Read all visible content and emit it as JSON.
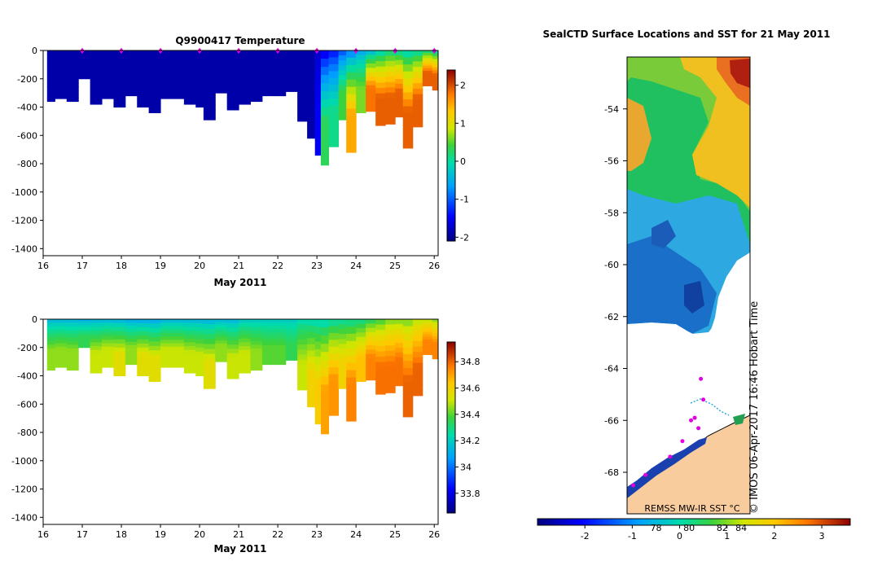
{
  "chart_data": [
    {
      "id": "temperature",
      "type": "heatmap",
      "title": "Q9900417  Temperature",
      "xlabel": "May 2011",
      "ylabel": "",
      "xlim": [
        16,
        26.1
      ],
      "ylim": [
        -1450,
        0
      ],
      "xticks": [
        16,
        17,
        18,
        19,
        20,
        21,
        22,
        23,
        24,
        25,
        26
      ],
      "yticks": [
        0,
        -200,
        -400,
        -600,
        -800,
        -1000,
        -1200,
        -1400
      ],
      "yticklabels": [
        "0",
        "-200",
        "-400",
        "-600",
        "-800",
        "-1000",
        "-1200",
        "-1400"
      ],
      "colorbar": {
        "min": -2.1,
        "max": 2.4,
        "ticks": [
          2,
          1,
          0,
          -1,
          -2
        ],
        "ticklabels": [
          "2",
          "1",
          "0",
          "-1",
          "-2"
        ]
      },
      "surface_markers": [
        17,
        18,
        19,
        20,
        21,
        22,
        23,
        24,
        25,
        26
      ],
      "profiles": [
        {
          "x": 16.1,
          "depth": 360,
          "surface": -1.9,
          "deep": -1.9
        },
        {
          "x": 16.3,
          "depth": 340,
          "surface": -1.9,
          "deep": -1.9
        },
        {
          "x": 16.6,
          "depth": 360,
          "surface": -1.9,
          "deep": -1.9
        },
        {
          "x": 16.9,
          "depth": 200,
          "surface": -1.9,
          "deep": -1.9
        },
        {
          "x": 17.2,
          "depth": 380,
          "surface": -1.9,
          "deep": -1.9
        },
        {
          "x": 17.5,
          "depth": 340,
          "surface": -1.9,
          "deep": -1.9
        },
        {
          "x": 17.8,
          "depth": 400,
          "surface": -1.9,
          "deep": -1.9
        },
        {
          "x": 18.1,
          "depth": 320,
          "surface": -1.9,
          "deep": -1.9
        },
        {
          "x": 18.4,
          "depth": 400,
          "surface": -1.9,
          "deep": -1.9
        },
        {
          "x": 18.7,
          "depth": 440,
          "surface": -1.9,
          "deep": -1.9
        },
        {
          "x": 19.0,
          "depth": 340,
          "surface": -1.9,
          "deep": -1.9
        },
        {
          "x": 19.3,
          "depth": 340,
          "surface": -1.9,
          "deep": -1.9
        },
        {
          "x": 19.6,
          "depth": 380,
          "surface": -1.9,
          "deep": -1.9
        },
        {
          "x": 19.9,
          "depth": 400,
          "surface": -1.9,
          "deep": -1.9
        },
        {
          "x": 20.1,
          "depth": 490,
          "surface": -1.9,
          "deep": -1.9
        },
        {
          "x": 20.4,
          "depth": 300,
          "surface": -1.9,
          "deep": -1.9
        },
        {
          "x": 20.7,
          "depth": 420,
          "surface": -1.9,
          "deep": -1.9
        },
        {
          "x": 21.0,
          "depth": 380,
          "surface": -1.9,
          "deep": -1.9
        },
        {
          "x": 21.3,
          "depth": 360,
          "surface": -1.9,
          "deep": -1.9
        },
        {
          "x": 21.6,
          "depth": 320,
          "surface": -1.9,
          "deep": -1.9
        },
        {
          "x": 21.9,
          "depth": 320,
          "surface": -1.9,
          "deep": -1.9
        },
        {
          "x": 22.2,
          "depth": 290,
          "surface": -1.9,
          "deep": -1.9
        },
        {
          "x": 22.5,
          "depth": 500,
          "surface": -1.9,
          "deep": -1.9
        },
        {
          "x": 22.75,
          "depth": 620,
          "surface": -1.9,
          "deep": -1.9
        },
        {
          "x": 22.95,
          "depth": 740,
          "surface": -1.7,
          "deep": -1.5
        },
        {
          "x": 23.1,
          "depth": 810,
          "surface": -1.5,
          "deep": 0.3
        },
        {
          "x": 23.3,
          "depth": 680,
          "surface": -1.3,
          "deep": 0.1
        },
        {
          "x": 23.55,
          "depth": 490,
          "surface": -1.0,
          "deep": 0.4
        },
        {
          "x": 23.75,
          "depth": 720,
          "surface": -0.7,
          "deep": 1.5
        },
        {
          "x": 24.0,
          "depth": 440,
          "surface": -0.5,
          "deep": 0.6
        },
        {
          "x": 24.25,
          "depth": 430,
          "surface": -0.3,
          "deep": 1.8
        },
        {
          "x": 24.5,
          "depth": 530,
          "surface": 0.0,
          "deep": 1.9
        },
        {
          "x": 24.75,
          "depth": 520,
          "surface": 0.2,
          "deep": 1.9
        },
        {
          "x": 25.0,
          "depth": 470,
          "surface": 0.1,
          "deep": 1.9
        },
        {
          "x": 25.2,
          "depth": 690,
          "surface": 0.0,
          "deep": 1.9
        },
        {
          "x": 25.45,
          "depth": 540,
          "surface": 0.1,
          "deep": 1.9
        },
        {
          "x": 25.7,
          "depth": 250,
          "surface": 0.2,
          "deep": 1.9
        },
        {
          "x": 25.95,
          "depth": 280,
          "surface": 0.0,
          "deep": 1.9
        }
      ]
    },
    {
      "id": "salinity",
      "type": "heatmap",
      "title": "",
      "xlabel": "May 2011",
      "ylabel": "",
      "xlim": [
        16,
        26.1
      ],
      "ylim": [
        -1450,
        0
      ],
      "xticks": [
        16,
        17,
        18,
        19,
        20,
        21,
        22,
        23,
        24,
        25,
        26
      ],
      "yticks": [
        0,
        -200,
        -400,
        -600,
        -800,
        -1000,
        -1200,
        -1400
      ],
      "yticklabels": [
        "0",
        "-200",
        "-400",
        "-600",
        "-800",
        "-1000",
        "-1200",
        "-1400"
      ],
      "colorbar": {
        "min": 33.65,
        "max": 34.95,
        "ticks": [
          34.8,
          34.6,
          34.4,
          34.2,
          34,
          33.8
        ],
        "ticklabels": [
          "34.8",
          "34.6",
          "34.4",
          "34.2",
          "34",
          "33.8"
        ]
      },
      "profiles": [
        {
          "x": 16.1,
          "depth": 360,
          "surface": 34.15,
          "deep": 34.45
        },
        {
          "x": 16.3,
          "depth": 340,
          "surface": 34.15,
          "deep": 34.45
        },
        {
          "x": 16.6,
          "depth": 360,
          "surface": 34.15,
          "deep": 34.45
        },
        {
          "x": 16.9,
          "depth": 200,
          "surface": 34.12,
          "deep": 34.35
        },
        {
          "x": 17.2,
          "depth": 380,
          "surface": 34.15,
          "deep": 34.5
        },
        {
          "x": 17.5,
          "depth": 340,
          "surface": 34.15,
          "deep": 34.5
        },
        {
          "x": 17.8,
          "depth": 400,
          "surface": 34.15,
          "deep": 34.55
        },
        {
          "x": 18.1,
          "depth": 320,
          "surface": 34.12,
          "deep": 34.45
        },
        {
          "x": 18.4,
          "depth": 400,
          "surface": 34.12,
          "deep": 34.55
        },
        {
          "x": 18.7,
          "depth": 440,
          "surface": 34.12,
          "deep": 34.55
        },
        {
          "x": 19.0,
          "depth": 340,
          "surface": 34.15,
          "deep": 34.5
        },
        {
          "x": 19.3,
          "depth": 340,
          "surface": 34.15,
          "deep": 34.5
        },
        {
          "x": 19.6,
          "depth": 380,
          "surface": 34.15,
          "deep": 34.5
        },
        {
          "x": 19.9,
          "depth": 400,
          "surface": 34.15,
          "deep": 34.5
        },
        {
          "x": 20.1,
          "depth": 490,
          "surface": 34.15,
          "deep": 34.55
        },
        {
          "x": 20.4,
          "depth": 300,
          "surface": 34.15,
          "deep": 34.45
        },
        {
          "x": 20.7,
          "depth": 420,
          "surface": 34.15,
          "deep": 34.5
        },
        {
          "x": 21.0,
          "depth": 380,
          "surface": 34.2,
          "deep": 34.5
        },
        {
          "x": 21.3,
          "depth": 360,
          "surface": 34.2,
          "deep": 34.45
        },
        {
          "x": 21.6,
          "depth": 320,
          "surface": 34.2,
          "deep": 34.4
        },
        {
          "x": 21.9,
          "depth": 320,
          "surface": 34.2,
          "deep": 34.4
        },
        {
          "x": 22.2,
          "depth": 290,
          "surface": 34.2,
          "deep": 34.35
        },
        {
          "x": 22.5,
          "depth": 500,
          "surface": 34.25,
          "deep": 34.5
        },
        {
          "x": 22.75,
          "depth": 620,
          "surface": 34.25,
          "deep": 34.6
        },
        {
          "x": 22.95,
          "depth": 740,
          "surface": 34.25,
          "deep": 34.62
        },
        {
          "x": 23.1,
          "depth": 810,
          "surface": 34.25,
          "deep": 34.7
        },
        {
          "x": 23.3,
          "depth": 680,
          "surface": 34.28,
          "deep": 34.72
        },
        {
          "x": 23.55,
          "depth": 490,
          "surface": 34.28,
          "deep": 34.6
        },
        {
          "x": 23.75,
          "depth": 720,
          "surface": 34.3,
          "deep": 34.75
        },
        {
          "x": 24.0,
          "depth": 440,
          "surface": 34.3,
          "deep": 34.65
        },
        {
          "x": 24.25,
          "depth": 430,
          "surface": 34.35,
          "deep": 34.75
        },
        {
          "x": 24.5,
          "depth": 530,
          "surface": 34.4,
          "deep": 34.78
        },
        {
          "x": 24.75,
          "depth": 520,
          "surface": 34.45,
          "deep": 34.78
        },
        {
          "x": 25.0,
          "depth": 470,
          "surface": 34.45,
          "deep": 34.78
        },
        {
          "x": 25.2,
          "depth": 690,
          "surface": 34.45,
          "deep": 34.8
        },
        {
          "x": 25.45,
          "depth": 540,
          "surface": 34.5,
          "deep": 34.8
        },
        {
          "x": 25.7,
          "depth": 250,
          "surface": 34.5,
          "deep": 34.75
        },
        {
          "x": 25.95,
          "depth": 280,
          "surface": 34.45,
          "deep": 34.75
        }
      ]
    },
    {
      "id": "sst-map",
      "type": "heatmap",
      "title": "SealCTD Surface Locations and SST for 21 May 2011",
      "ylim": [
        -69.6,
        -52
      ],
      "yticks": [
        -54,
        -56,
        -58,
        -60,
        -62,
        -64,
        -66,
        -68
      ],
      "yticklabels": [
        "-54",
        "-56",
        "-58",
        "-60",
        "-62",
        "-64",
        "-66",
        "-68"
      ],
      "colorbar": {
        "min": -3.0,
        "max": 3.6,
        "ticks": [
          -2,
          -1,
          0,
          1,
          2,
          3
        ],
        "ticklabels": [
          "-2",
          "-1",
          "0",
          "1",
          "2",
          "3"
        ],
        "contour_ticks": [
          -0.5,
          0.2,
          0.9,
          1.3
        ],
        "contour_ticklabels": [
          "78",
          "80",
          "82",
          "84"
        ]
      },
      "source_label": "REMSS MW-IR SST °C",
      "watermark": "© IMOS 06-Apr-2017 16:46 Hobart Time",
      "seal_points": [
        {
          "lat": -64.4,
          "pos": 0.6
        },
        {
          "lat": -65.2,
          "pos": 0.62
        },
        {
          "lat": -65.9,
          "pos": 0.55
        },
        {
          "lat": -66.0,
          "pos": 0.52
        },
        {
          "lat": -66.3,
          "pos": 0.58
        },
        {
          "lat": -66.8,
          "pos": 0.45
        },
        {
          "lat": -67.4,
          "pos": 0.35
        },
        {
          "lat": -68.1,
          "pos": 0.15
        },
        {
          "lat": -68.5,
          "pos": 0.05
        }
      ]
    }
  ]
}
